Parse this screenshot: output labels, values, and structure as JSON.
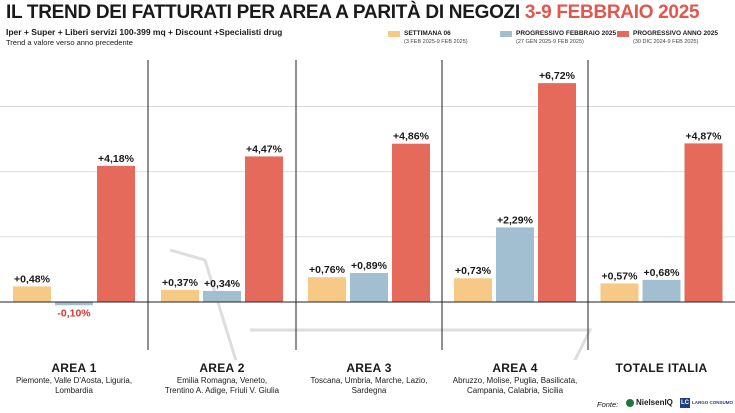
{
  "header": {
    "title_main": "IL TREND DEI FATTURATI PER AREA A PARITÀ DI NEGOZI",
    "title_accent": "3-9 FEBBRAIO 2025",
    "subtitle": "Iper + Super + Liberi servizi 100-399 mq + Discount +Specialisti drug",
    "note": "Trend a valore verso anno precedente"
  },
  "legend": [
    {
      "label": "SETTIMANA 06",
      "range": "(3 FEB 2025-9 FEB 2025)"
    },
    {
      "label": "PROGRESSIVO FEBBRAIO 2025",
      "range": "(27 GEN 2025-9 FEB 2025)"
    },
    {
      "label": "PROGRESSIVO ANNO 2025",
      "range": "(30 DIC 2024-9 FEB 2025)"
    }
  ],
  "colors": {
    "settimana": "#f6c987",
    "febbraio": "#a2bfd2",
    "anno": "#e66a5c",
    "negative_label": "#d63a2f",
    "title_accent": "#e2574c"
  },
  "areas": [
    {
      "name": "AREA 1",
      "regions": [
        "Piemonte, Valle D'Aosta, Liguria,",
        "Lombardia"
      ]
    },
    {
      "name": "AREA 2",
      "regions": [
        "Emilia Romagna, Veneto,",
        "Trentino A. Adige, Friuli V. Giulia"
      ]
    },
    {
      "name": "AREA 3",
      "regions": [
        "Toscana, Umbria, Marche, Lazio,",
        "Sardegna"
      ]
    },
    {
      "name": "AREA 4",
      "regions": [
        "Abruzzo, Molise, Puglia, Basilicata,",
        "Campania, Calabria, Sicilia"
      ]
    },
    {
      "name": "TOTALE ITALIA",
      "regions": []
    }
  ],
  "chart_data": {
    "type": "bar",
    "categories": [
      "AREA 1",
      "AREA 2",
      "AREA 3",
      "AREA 4",
      "TOTALE ITALIA"
    ],
    "series": [
      {
        "name": "SETTIMANA 06",
        "values": [
          0.48,
          0.37,
          0.76,
          0.73,
          0.57
        ],
        "labels": [
          "+0,48%",
          "+0,37%",
          "+0,76%",
          "+0,73%",
          "+0,57%"
        ]
      },
      {
        "name": "PROGRESSIVO FEBBRAIO 2025",
        "values": [
          -0.1,
          0.34,
          0.89,
          2.29,
          0.68
        ],
        "labels": [
          "-0,10%",
          "+0,34%",
          "+0,89%",
          "+2,29%",
          "+0,68%"
        ]
      },
      {
        "name": "PROGRESSIVO ANNO 2025",
        "values": [
          4.18,
          4.47,
          4.86,
          6.72,
          4.87
        ],
        "labels": [
          "+4,18%",
          "+4,47%",
          "+4,86%",
          "+6,72%",
          "+4,87%"
        ]
      }
    ],
    "ylim": [
      -1,
      7
    ],
    "grid": true,
    "legend_position": "top-right"
  },
  "footer": {
    "source_label": "Fonte:",
    "logo_nielsen": "NielsenIQ",
    "logo_ls_text": "LARGO CONSUMO"
  }
}
